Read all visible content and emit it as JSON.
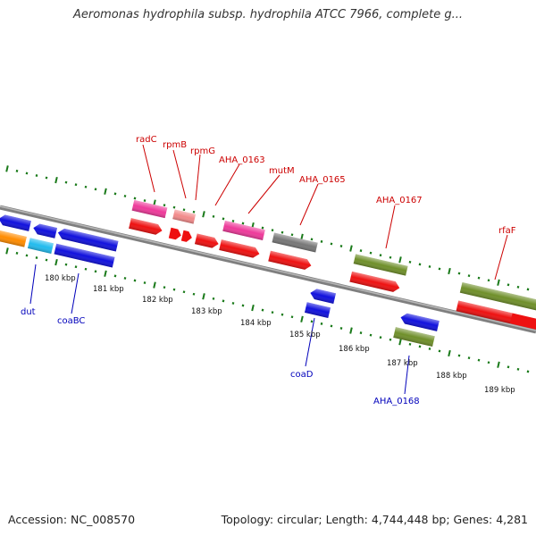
{
  "header": {
    "title": "Aeromonas hydrophila subsp. hydrophila ATCC 7966, complete g..."
  },
  "footer": {
    "accession": "Accession: NC_008570",
    "summary": "Topology: circular; Length: 4,744,448 bp; Genes: 4,281"
  },
  "colors": {
    "backbone": "#8c8c8c",
    "ticks": "#1a7a1a",
    "forward_gene": "#ee1111",
    "reverse_gene": "#1111dd",
    "hypothetical": "#ee3a9a",
    "pseudo": "#f28a8a",
    "other": "#777777",
    "cluster": "#6f8f2a",
    "rna": "#ff8c00",
    "cyan": "#22bbee",
    "label_forward": "#cc0000",
    "label_reverse": "#0000bb"
  },
  "kbp_labels": [
    "180 kbp",
    "181 kbp",
    "182 kbp",
    "183 kbp",
    "184 kbp",
    "185 kbp",
    "186 kbp",
    "187 kbp",
    "188 kbp",
    "189 kbp"
  ],
  "genes": {
    "forward_labels": [
      {
        "id": "radC",
        "text": "radC"
      },
      {
        "id": "rpmB",
        "text": "rpmB"
      },
      {
        "id": "rpmG",
        "text": "rpmG"
      },
      {
        "id": "aha0163",
        "text": "AHA_0163"
      },
      {
        "id": "mutM",
        "text": "mutM"
      },
      {
        "id": "aha0165",
        "text": "AHA_0165"
      },
      {
        "id": "aha0167",
        "text": "AHA_0167"
      },
      {
        "id": "rfaF",
        "text": "rfaF"
      }
    ],
    "reverse_labels": [
      {
        "id": "dut",
        "text": "dut"
      },
      {
        "id": "coaBC",
        "text": "coaBC"
      },
      {
        "id": "coaD",
        "text": "coaD"
      },
      {
        "id": "aha0168",
        "text": "AHA_0168"
      }
    ]
  }
}
